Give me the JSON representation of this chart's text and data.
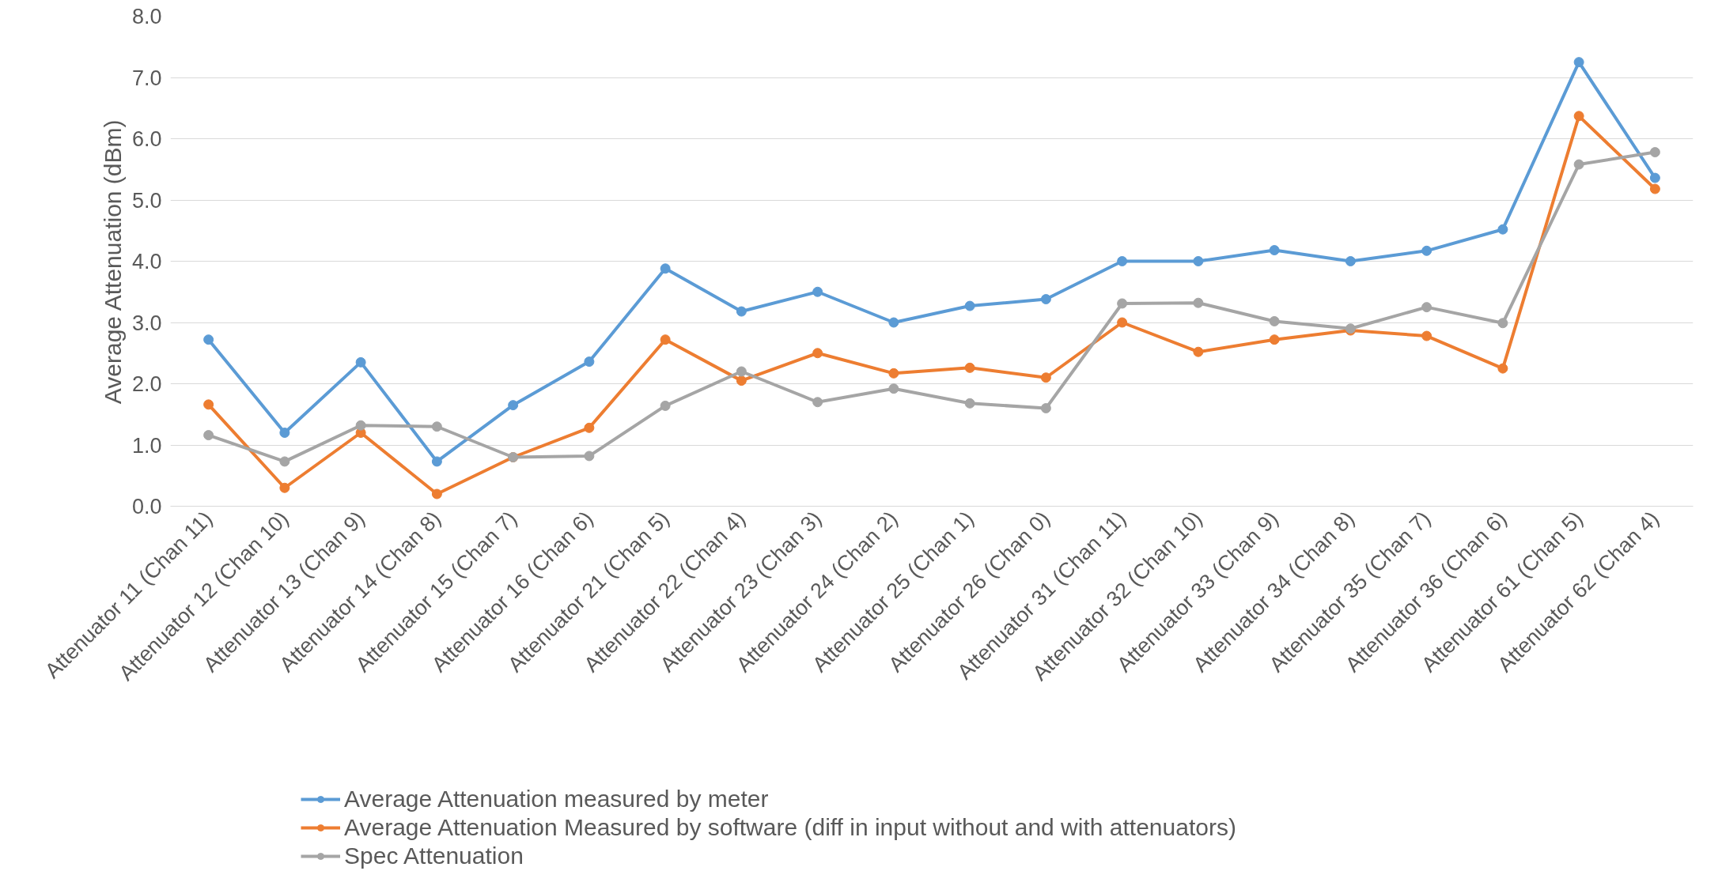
{
  "chart_data": {
    "type": "line",
    "ylabel": "Average Attenuation (dBm)",
    "categories": [
      "Attenuator 11 (Chan 11)",
      "Attenuator 12 (Chan 10)",
      "Attenuator 13 (Chan 9)",
      "Attenuator 14 (Chan 8)",
      "Attenuator 15 (Chan 7)",
      "Attenuator 16 (Chan 6)",
      "Attenuator 21 (Chan 5)",
      "Attenuator 22 (Chan 4)",
      "Attenuator 23 (Chan 3)",
      "Attenuator 24 (Chan 2)",
      "Attenuator 25 (Chan 1)",
      "Attenuator 26 (Chan 0)",
      "Attenuator 31 (Chan 11)",
      "Attenuator 32 (Chan 10)",
      "Attenuator 33 (Chan 9)",
      "Attenuator 34 (Chan 8)",
      "Attenuator 35 (Chan 7)",
      "Attenuator 36 (Chan 6)",
      "Attenuator 61 (Chan 5)",
      "Attenuator 62 (Chan 4)"
    ],
    "series": [
      {
        "name": "Average Attenuation measured by meter",
        "color": "#5b9bd5",
        "values": [
          2.72,
          1.2,
          2.35,
          0.73,
          1.65,
          2.36,
          3.88,
          3.18,
          3.5,
          3.0,
          3.27,
          3.38,
          4.0,
          4.0,
          4.18,
          4.0,
          4.17,
          4.52,
          7.25,
          5.36
        ]
      },
      {
        "name": "Average Attenuation Measured by software (diff in input without and with attenuators)",
        "color": "#ed7d31",
        "values": [
          1.66,
          0.3,
          1.2,
          0.2,
          0.8,
          1.28,
          2.72,
          2.05,
          2.5,
          2.17,
          2.26,
          2.1,
          3.0,
          2.52,
          2.72,
          2.87,
          2.78,
          2.25,
          6.37,
          5.18
        ]
      },
      {
        "name": "Spec Attenuation",
        "color": "#a5a5a5",
        "values": [
          1.16,
          0.73,
          1.32,
          1.3,
          0.8,
          0.82,
          1.64,
          2.2,
          1.7,
          1.92,
          1.68,
          1.6,
          3.31,
          3.32,
          3.02,
          2.9,
          3.25,
          2.99,
          5.58,
          5.78
        ]
      }
    ],
    "ylim": [
      0,
      8
    ],
    "yticks": [
      {
        "value": 0,
        "label": "0.0"
      },
      {
        "value": 1,
        "label": "1.0"
      },
      {
        "value": 2,
        "label": "2.0"
      },
      {
        "value": 3,
        "label": "3.0"
      },
      {
        "value": 4,
        "label": "4.0"
      },
      {
        "value": 5,
        "label": "5.0"
      },
      {
        "value": 6,
        "label": "6.0"
      },
      {
        "value": 7,
        "label": "7.0"
      },
      {
        "value": 8,
        "label": "8.0"
      }
    ],
    "grid": "y",
    "legend": "bottom",
    "marker": "circle",
    "line_style": "solid"
  }
}
